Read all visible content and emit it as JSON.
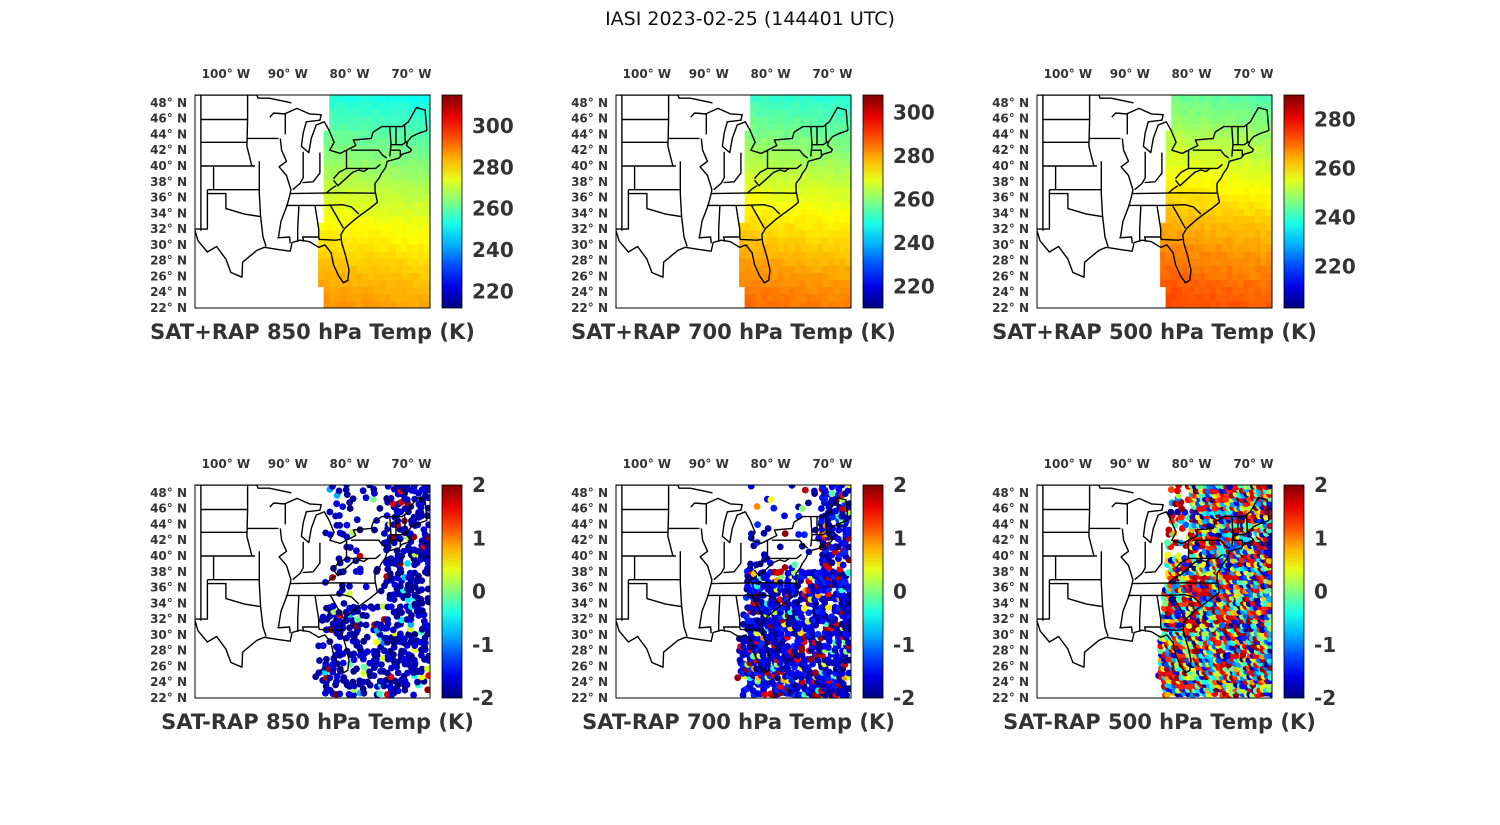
{
  "figure": {
    "title": "IASI 2023-02-25 (144401 UTC)"
  },
  "lon_labels": [
    "100° W",
    "90° W",
    "80° W",
    "70° W"
  ],
  "lat_labels": [
    "48° N",
    "46° N",
    "44° N",
    "42° N",
    "40° N",
    "38° N",
    "36° N",
    "34° N",
    "32° N",
    "30° N",
    "28° N",
    "26° N",
    "24° N",
    "22° N"
  ],
  "colors": {
    "map_lines": "#000000",
    "colormap": "jet"
  },
  "chart_data": [
    {
      "type": "heatmap",
      "title": "SAT+RAP 850 hPa Temp (K)",
      "map_extent": {
        "lon": [
          -105,
          -67
        ],
        "lat": [
          22,
          49
        ]
      },
      "colorbar": {
        "min": 212,
        "max": 315,
        "ticks": [
          220,
          240,
          260,
          280,
          300
        ]
      },
      "field": "smooth",
      "value_north": 252,
      "value_south": 286
    },
    {
      "type": "heatmap",
      "title": "SAT+RAP 700 hPa Temp (K)",
      "map_extent": {
        "lon": [
          -105,
          -67
        ],
        "lat": [
          22,
          49
        ]
      },
      "colorbar": {
        "min": 210,
        "max": 308,
        "ticks": [
          220,
          240,
          260,
          280,
          300
        ]
      },
      "field": "smooth",
      "value_north": 250,
      "value_south": 284
    },
    {
      "type": "heatmap",
      "title": "SAT+RAP 500 hPa Temp (K)",
      "map_extent": {
        "lon": [
          -105,
          -67
        ],
        "lat": [
          22,
          49
        ]
      },
      "colorbar": {
        "min": 203,
        "max": 290,
        "ticks": [
          220,
          240,
          260,
          280
        ]
      },
      "field": "smooth",
      "value_north": 243,
      "value_south": 272
    },
    {
      "type": "scatter",
      "title": "SAT-RAP 850 hPa Temp (K)",
      "map_extent": {
        "lon": [
          -105,
          -67
        ],
        "lat": [
          22,
          49
        ]
      },
      "colorbar": {
        "min": -2,
        "max": 2,
        "ticks": [
          2,
          1,
          0,
          -1,
          -2
        ]
      },
      "field": "sparse",
      "typical_value": -1.8
    },
    {
      "type": "scatter",
      "title": "SAT-RAP 700 hPa Temp (K)",
      "map_extent": {
        "lon": [
          -105,
          -67
        ],
        "lat": [
          22,
          49
        ]
      },
      "colorbar": {
        "min": -2,
        "max": 2,
        "ticks": [
          2,
          1,
          0,
          -1,
          -2
        ]
      },
      "field": "medium",
      "typical_value": -1.5
    },
    {
      "type": "scatter",
      "title": "SAT-RAP 500 hPa Temp (K)",
      "map_extent": {
        "lon": [
          -105,
          -67
        ],
        "lat": [
          22,
          49
        ]
      },
      "colorbar": {
        "min": -2,
        "max": 2,
        "ticks": [
          2,
          1,
          0,
          -1,
          -2
        ]
      },
      "field": "dense",
      "typical_value": 0.2
    }
  ]
}
